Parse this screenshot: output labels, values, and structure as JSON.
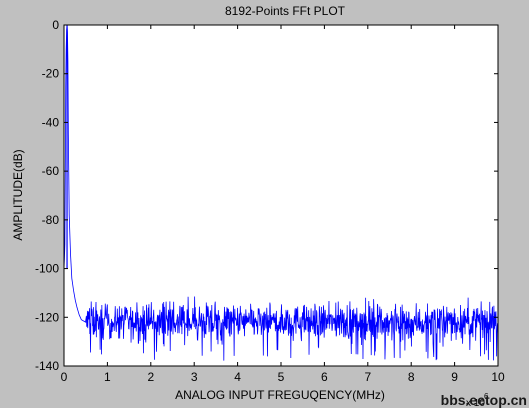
{
  "chart_data": {
    "type": "line",
    "title": "8192-Points FFt PLOT",
    "xlabel": "ANALOG INPUT FREGUQENCY(MHz)",
    "ylabel": "AMPLITUDE(dB)",
    "x_multiplier_label": "x 10",
    "x_multiplier_exponent": "6",
    "xlim": [
      0,
      10
    ],
    "ylim": [
      -140,
      0
    ],
    "x_ticks": [
      0,
      1,
      2,
      3,
      4,
      5,
      6,
      7,
      8,
      9,
      10
    ],
    "x_tick_labels": [
      "0",
      "1",
      "2",
      "3",
      "4",
      "5",
      "6",
      "7",
      "8",
      "9",
      "10"
    ],
    "y_ticks": [
      0,
      -20,
      -40,
      -60,
      -80,
      -100,
      -120,
      -140
    ],
    "y_tick_labels": [
      "0",
      "-20",
      "-40",
      "-60",
      "-80",
      "-100",
      "-120",
      "-140"
    ],
    "grid": false,
    "series": [
      {
        "color": "#0000ff",
        "fundamental": {
          "x": 0.07,
          "y": 0
        },
        "noise_floor_mean_db": -122,
        "noise_floor_range_db": [
          -138,
          -111
        ],
        "points": [
          [
            0.0,
            -100
          ],
          [
            0.01,
            -96
          ],
          [
            0.02,
            -90
          ],
          [
            0.03,
            -60
          ],
          [
            0.04,
            -25
          ],
          [
            0.05,
            -10
          ],
          [
            0.06,
            -2
          ],
          [
            0.07,
            0
          ],
          [
            0.08,
            -3
          ],
          [
            0.09,
            -15
          ],
          [
            0.1,
            -45
          ],
          [
            0.12,
            -78
          ],
          [
            0.15,
            -94
          ],
          [
            0.18,
            -104
          ],
          [
            0.22,
            -109
          ],
          [
            0.26,
            -113
          ],
          [
            0.3,
            -116
          ],
          [
            0.35,
            -119
          ],
          [
            0.4,
            -121
          ],
          [
            0.5,
            -122
          ],
          [
            1.0,
            -122
          ],
          [
            2.0,
            -122
          ],
          [
            3.0,
            -122
          ],
          [
            4.0,
            -122
          ],
          [
            5.0,
            -122
          ],
          [
            6.0,
            -122
          ],
          [
            6.95,
            -112
          ],
          [
            7.0,
            -122
          ],
          [
            8.0,
            -122
          ],
          [
            9.0,
            -122
          ],
          [
            10.0,
            -122
          ]
        ]
      }
    ]
  },
  "watermark": "bbs.eetop.cn"
}
